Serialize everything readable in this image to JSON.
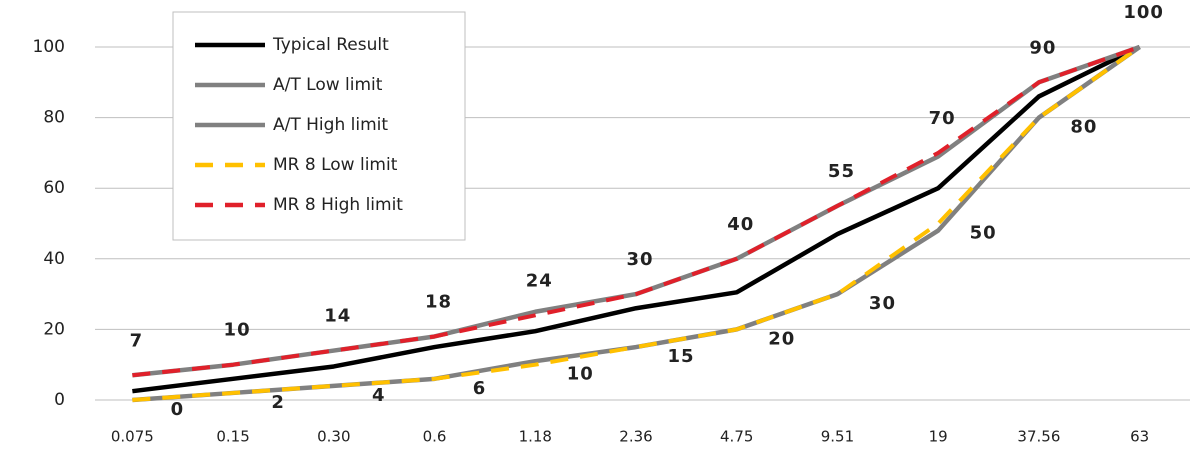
{
  "chart_data": {
    "type": "line",
    "categories": [
      "0.075",
      "0.15",
      "0.30",
      "0.6",
      "1.18",
      "2.36",
      "4.75",
      "9.51",
      "19",
      "37.56",
      "63"
    ],
    "series": [
      {
        "name": "Typical Result",
        "color": "#000000",
        "dash": false,
        "values": [
          2.5,
          6,
          9.5,
          15,
          19.5,
          26,
          30.5,
          47,
          60,
          86,
          100
        ]
      },
      {
        "name": "A/T Low limit",
        "color": "#808080",
        "dash": false,
        "values": [
          0,
          2,
          4,
          6,
          11,
          15,
          20,
          30,
          48,
          80,
          100
        ]
      },
      {
        "name": "A/T High limit",
        "color": "#808080",
        "dash": false,
        "values": [
          7,
          10,
          14,
          18,
          25,
          30,
          40,
          55,
          69,
          90,
          100
        ]
      },
      {
        "name": "MR 8 Low limit",
        "color": "#ffc000",
        "dash": true,
        "data_labels": "below",
        "values": [
          0,
          2,
          4,
          6,
          10,
          15,
          20,
          30,
          50,
          80,
          100
        ]
      },
      {
        "name": "MR 8 High limit",
        "color": "#e0202a",
        "dash": true,
        "data_labels": "above",
        "values": [
          7,
          10,
          14,
          18,
          24,
          30,
          40,
          55,
          70,
          90,
          100
        ]
      }
    ],
    "ylim": [
      0,
      100
    ],
    "yticks": [
      0,
      20,
      40,
      60,
      80,
      100
    ],
    "grid": true,
    "legend": "upper left"
  }
}
